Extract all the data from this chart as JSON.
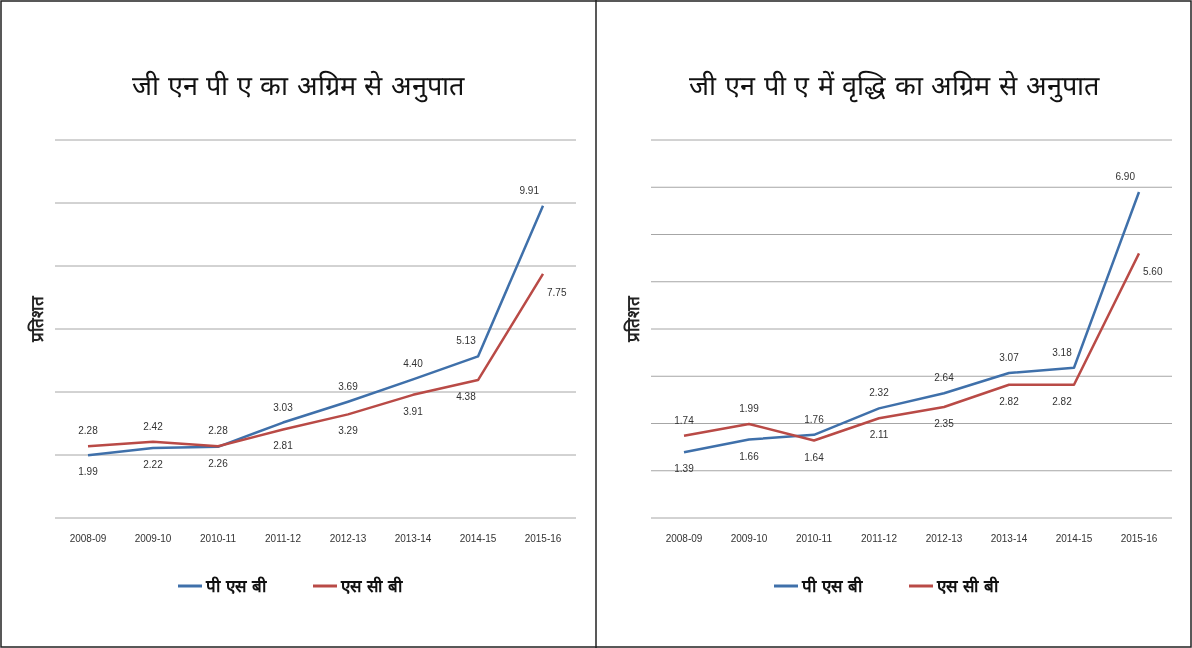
{
  "chart_data": [
    {
      "type": "line",
      "title": "जी एन पी ए का अग्रिम से अनुपात",
      "ylabel": "प्रतिशत",
      "categories": [
        "2008-09",
        "2009-10",
        "2010-11",
        "2011-12",
        "2012-13",
        "2013-14",
        "2014-15",
        "2015-16"
      ],
      "series": [
        {
          "name": "पी एस बी",
          "color": "#3f70aa",
          "values": [
            1.99,
            2.22,
            2.26,
            3.03,
            3.69,
            4.4,
            5.13,
            9.91
          ],
          "value_labels": [
            "1.99",
            "2.22",
            "2.26",
            "3.03",
            "3.69",
            "4.40",
            "5.13",
            "9.91"
          ]
        },
        {
          "name": "एस सी बी",
          "color": "#b94a46",
          "values": [
            2.28,
            2.42,
            2.28,
            2.81,
            3.29,
            3.91,
            4.38,
            7.75
          ],
          "value_labels": [
            "2.28",
            "2.42",
            "2.28",
            "2.81",
            "3.29",
            "3.91",
            "4.38",
            "7.75"
          ]
        }
      ],
      "ylim": [
        0,
        12
      ],
      "yticks": [
        {
          "value": 0,
          "label": null
        },
        {
          "value": 2,
          "label": null
        },
        {
          "value": 4,
          "label": null
        },
        {
          "value": 6,
          "label": null
        },
        {
          "value": 8,
          "label": null
        },
        {
          "value": 10,
          "label": null
        },
        {
          "value": 12,
          "label": null
        }
      ],
      "tick_labels": "x",
      "grid": "y",
      "legend": "bottom"
    },
    {
      "type": "line",
      "title": "जी एन पी ए में वृद्धि का अग्रिम से अनुपात",
      "ylabel": "प्रतिशत",
      "categories": [
        "2008-09",
        "2009-10",
        "2010-11",
        "2011-12",
        "2012-13",
        "2013-14",
        "2014-15",
        "2015-16"
      ],
      "series": [
        {
          "name": "पी एस बी",
          "color": "#3f70aa",
          "values": [
            1.39,
            1.66,
            1.76,
            2.32,
            2.64,
            3.07,
            3.18,
            6.9
          ],
          "value_labels": [
            "1.39",
            "1.66",
            "1.76",
            "2.32",
            "2.64",
            "3.07",
            "3.18",
            "6.90"
          ]
        },
        {
          "name": "एस सी बी",
          "color": "#b94a46",
          "values": [
            1.74,
            1.99,
            1.64,
            2.11,
            2.35,
            2.82,
            2.82,
            5.6
          ],
          "value_labels": [
            "1.74",
            "1.99",
            "1.64",
            "2.11",
            "2.35",
            "2.82",
            "2.82",
            "5.60"
          ]
        }
      ],
      "ylim": [
        0,
        8
      ],
      "yticks": [
        {
          "value": 0,
          "label": null
        },
        {
          "value": 1,
          "label": null
        },
        {
          "value": 2,
          "label": null
        },
        {
          "value": 3,
          "label": null
        },
        {
          "value": 4,
          "label": null
        },
        {
          "value": 5,
          "label": null
        },
        {
          "value": 6,
          "label": null
        },
        {
          "value": 7,
          "label": null
        },
        {
          "value": 8,
          "label": null
        }
      ],
      "tick_labels": "x",
      "grid": "y",
      "legend": "bottom"
    }
  ]
}
